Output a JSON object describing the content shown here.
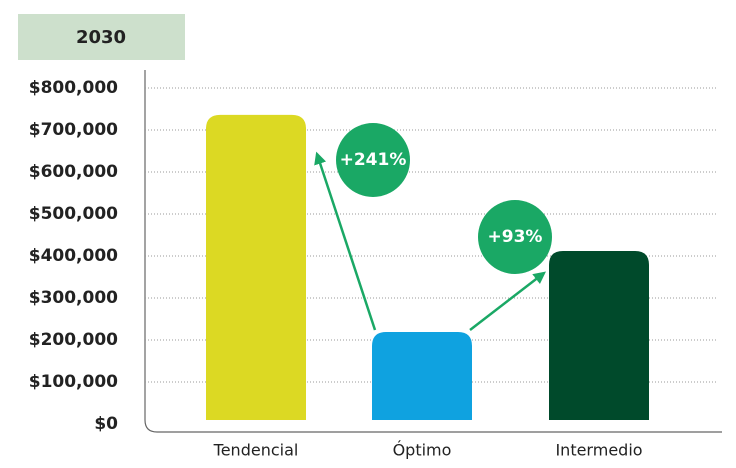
{
  "chart_data": {
    "type": "bar",
    "title": "2030",
    "categories": [
      "Tendencial",
      "Óptimo",
      "Intermedio"
    ],
    "values": [
      736000,
      219000,
      412000
    ],
    "colors": [
      "#dcd923",
      "#0fa2e0",
      "#004a2b"
    ],
    "ylim": [
      0,
      800000
    ],
    "yticks": [
      {
        "value": 0,
        "label": "$0"
      },
      {
        "value": 100000,
        "label": "$100,000"
      },
      {
        "value": 200000,
        "label": "$200,000"
      },
      {
        "value": 300000,
        "label": "$300,000"
      },
      {
        "value": 400000,
        "label": "$400,000"
      },
      {
        "value": 500000,
        "label": "$500,000"
      },
      {
        "value": 600000,
        "label": "$600,000"
      },
      {
        "value": 700000,
        "label": "$700,000"
      },
      {
        "value": 800000,
        "label": "$800,000"
      }
    ],
    "grid": true,
    "annotations": [
      "+241%",
      "+93%"
    ]
  }
}
